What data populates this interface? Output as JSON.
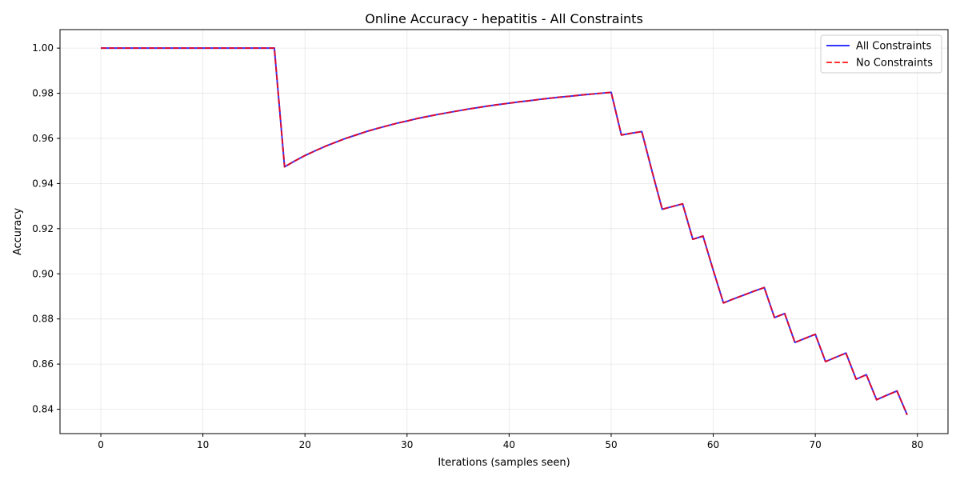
{
  "chart_data": {
    "type": "line",
    "title": "Online Accuracy - hepatitis - All Constraints",
    "xlabel": "Iterations (samples seen)",
    "ylabel": "Accuracy",
    "xlim": [
      -4,
      83
    ],
    "ylim": [
      0.8292,
      1.0082
    ],
    "xticks": [
      0,
      10,
      20,
      30,
      40,
      50,
      60,
      70,
      80
    ],
    "xtick_labels": [
      "0",
      "10",
      "20",
      "30",
      "40",
      "50",
      "60",
      "70",
      "80"
    ],
    "yticks": [
      0.84,
      0.86,
      0.88,
      0.9,
      0.92,
      0.94,
      0.96,
      0.98,
      1.0
    ],
    "ytick_labels": [
      "0.84",
      "0.86",
      "0.88",
      "0.90",
      "0.92",
      "0.94",
      "0.96",
      "0.98",
      "1.00"
    ],
    "grid": true,
    "legend_position": "top-right",
    "x": [
      0,
      1,
      2,
      3,
      4,
      5,
      6,
      7,
      8,
      9,
      10,
      11,
      12,
      13,
      14,
      15,
      16,
      17,
      18,
      19,
      20,
      21,
      22,
      23,
      24,
      25,
      26,
      27,
      28,
      29,
      30,
      31,
      32,
      33,
      34,
      35,
      36,
      37,
      38,
      39,
      40,
      41,
      42,
      43,
      44,
      45,
      46,
      47,
      48,
      49,
      50,
      51,
      52,
      53,
      54,
      55,
      56,
      57,
      58,
      59,
      60,
      61,
      62,
      63,
      64,
      65,
      66,
      67,
      68,
      69,
      70,
      71,
      72,
      73,
      74,
      75,
      76,
      77,
      78,
      79
    ],
    "series": [
      {
        "name": "All Constraints",
        "color": "#0000ff",
        "style": "solid",
        "values": [
          1.0,
          1.0,
          1.0,
          1.0,
          1.0,
          1.0,
          1.0,
          1.0,
          1.0,
          1.0,
          1.0,
          1.0,
          1.0,
          1.0,
          1.0,
          1.0,
          1.0,
          1.0,
          0.9474,
          0.95,
          0.9524,
          0.9545,
          0.9565,
          0.9583,
          0.96,
          0.9615,
          0.963,
          0.9643,
          0.9655,
          0.9667,
          0.9677,
          0.9688,
          0.9697,
          0.9706,
          0.9714,
          0.9722,
          0.973,
          0.9737,
          0.9744,
          0.975,
          0.9756,
          0.9762,
          0.9767,
          0.9773,
          0.9778,
          0.9783,
          0.9787,
          0.9792,
          0.9796,
          0.98,
          0.9804,
          0.9615,
          0.9623,
          0.963,
          0.9455,
          0.9286,
          0.9298,
          0.931,
          0.9153,
          0.9167,
          0.9016,
          0.8871,
          0.8889,
          0.8906,
          0.8923,
          0.8939,
          0.8806,
          0.8824,
          0.8696,
          0.8714,
          0.8732,
          0.8611,
          0.863,
          0.8649,
          0.8533,
          0.8553,
          0.8442,
          0.8462,
          0.8481,
          0.8375
        ]
      },
      {
        "name": "No Constraints",
        "color": "#ff0000",
        "style": "dashed",
        "values": [
          1.0,
          1.0,
          1.0,
          1.0,
          1.0,
          1.0,
          1.0,
          1.0,
          1.0,
          1.0,
          1.0,
          1.0,
          1.0,
          1.0,
          1.0,
          1.0,
          1.0,
          1.0,
          0.9474,
          0.95,
          0.9524,
          0.9545,
          0.9565,
          0.9583,
          0.96,
          0.9615,
          0.963,
          0.9643,
          0.9655,
          0.9667,
          0.9677,
          0.9688,
          0.9697,
          0.9706,
          0.9714,
          0.9722,
          0.973,
          0.9737,
          0.9744,
          0.975,
          0.9756,
          0.9762,
          0.9767,
          0.9773,
          0.9778,
          0.9783,
          0.9787,
          0.9792,
          0.9796,
          0.98,
          0.9804,
          0.9615,
          0.9623,
          0.963,
          0.9455,
          0.9286,
          0.9298,
          0.931,
          0.9153,
          0.9167,
          0.9016,
          0.8871,
          0.8889,
          0.8906,
          0.8923,
          0.8939,
          0.8806,
          0.8824,
          0.8696,
          0.8714,
          0.8732,
          0.8611,
          0.863,
          0.8649,
          0.8533,
          0.8553,
          0.8442,
          0.8462,
          0.8481,
          0.8375
        ]
      }
    ]
  }
}
